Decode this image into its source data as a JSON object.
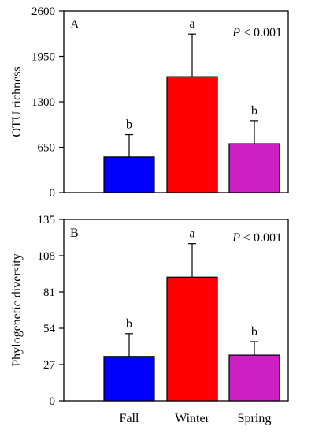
{
  "colors": {
    "fall": "#0000ff",
    "winter": "#ff0000",
    "spring": "#cc1fc4",
    "axis": "#000000"
  },
  "chart_data": [
    {
      "type": "bar",
      "panel_label": "A",
      "stat_text": "P < 0.001",
      "ylabel": "OTU richness",
      "xlabel": "",
      "categories": [
        "Fall",
        "Winter",
        "Spring"
      ],
      "values": [
        510,
        1660,
        700
      ],
      "error_upper": [
        830,
        2270,
        1030
      ],
      "significance": [
        "b",
        "a",
        "b"
      ],
      "ylim": [
        0,
        2600
      ],
      "yticks": [
        0,
        650,
        1300,
        1950,
        2600
      ],
      "show_xtick_labels": false,
      "grid": false
    },
    {
      "type": "bar",
      "panel_label": "B",
      "stat_text": "P < 0.001",
      "ylabel": "Phylogenetic diversity",
      "xlabel": "",
      "categories": [
        "Fall",
        "Winter",
        "Spring"
      ],
      "values": [
        33,
        92,
        34
      ],
      "error_upper": [
        50,
        117,
        44
      ],
      "significance": [
        "b",
        "a",
        "b"
      ],
      "ylim": [
        0,
        135
      ],
      "yticks": [
        0,
        27,
        54,
        81,
        108,
        135
      ],
      "show_xtick_labels": true,
      "grid": false
    }
  ]
}
